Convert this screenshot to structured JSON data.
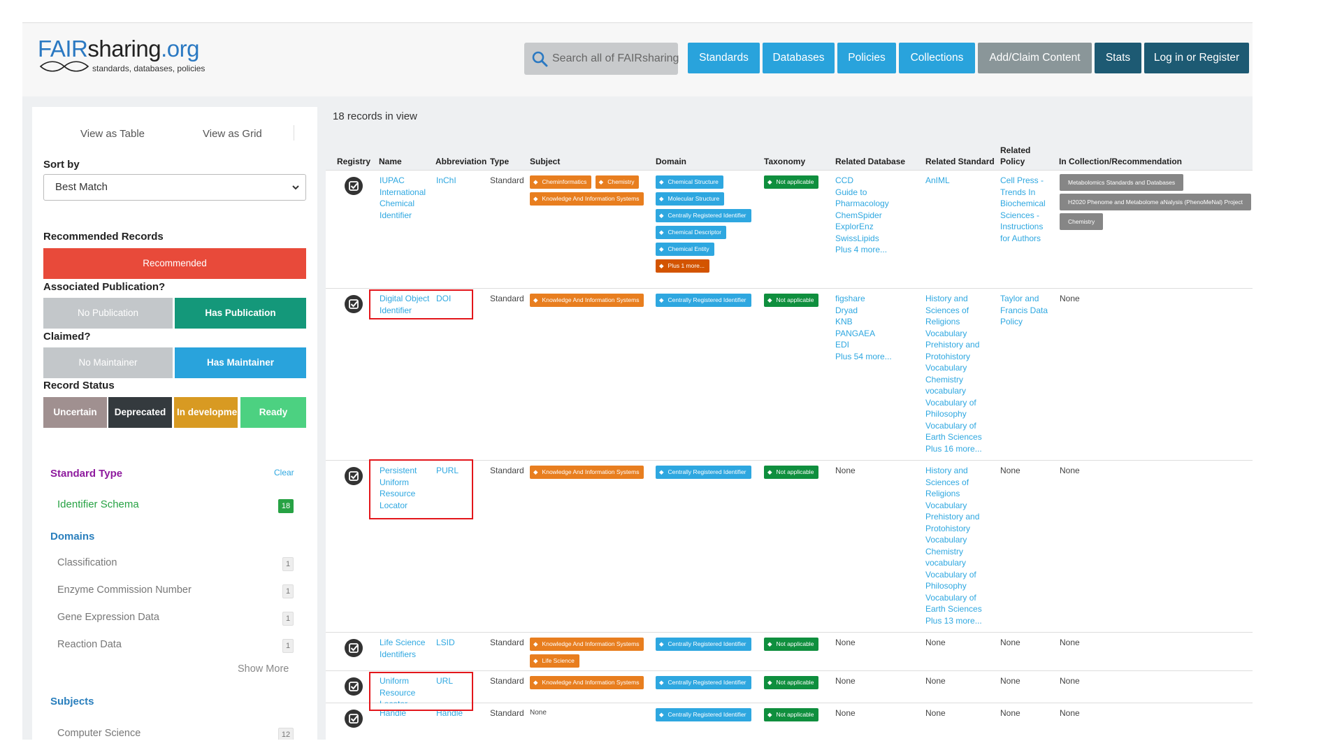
{
  "header": {
    "logo": {
      "fair": "FAIR",
      "sharing": "sharing",
      "org": ".org",
      "tagline": "standards, databases, policies"
    },
    "search_placeholder": "Search all of FAIRsharing",
    "nav": [
      "Standards",
      "Databases",
      "Policies",
      "Collections",
      "Add/Claim Content",
      "Stats",
      "Log in or Register"
    ]
  },
  "sidebar": {
    "view_table": "View as Table",
    "view_grid": "View as Grid",
    "sort_by_label": "Sort by",
    "sort_value": "Best Match",
    "recommended_label": "Recommended Records",
    "recommended_btn": "Recommended",
    "publication_label": "Associated Publication?",
    "no_publication": "No Publication",
    "has_publication": "Has Publication",
    "claimed_label": "Claimed?",
    "no_maintainer": "No Maintainer",
    "has_maintainer": "Has Maintainer",
    "status_label": "Record Status",
    "status": [
      "Uncertain",
      "Deprecated",
      "In development",
      "Ready"
    ],
    "standard_type": {
      "title": "Standard Type",
      "clear": "Clear",
      "item": "Identifier Schema",
      "count": "18"
    },
    "domains": {
      "title": "Domains",
      "items": [
        {
          "label": "Classification",
          "count": "1"
        },
        {
          "label": "Enzyme Commission Number",
          "count": "1"
        },
        {
          "label": "Gene Expression Data",
          "count": "1"
        },
        {
          "label": "Reaction Data",
          "count": "1"
        }
      ],
      "show_more": "Show More"
    },
    "subjects": {
      "title": "Subjects",
      "first_item": "Computer Science",
      "first_count": "12"
    }
  },
  "main": {
    "records_count": "18 records in view",
    "columns": [
      "Registry",
      "Name",
      "Abbreviation",
      "Type",
      "Subject",
      "Domain",
      "Taxonomy",
      "Related Database",
      "Related Standard",
      "Related Policy",
      "In Collection/Recommendation"
    ],
    "rows": [
      {
        "name": [
          "IUPAC",
          "International",
          "Chemical",
          "Identifier"
        ],
        "abbr": "InChI",
        "type": "Standard",
        "subjects": [
          "Cheminformatics",
          "Chemistry",
          "Knowledge And Information Systems"
        ],
        "domains": [
          "Chemical Structure",
          "Molecular Structure",
          "Centrally Registered Identifier",
          "Chemical Descriptor",
          "Chemical Entity",
          "Plus 1 more..."
        ],
        "taxonomy": "Not applicable",
        "related_db": [
          "CCD",
          "Guide to",
          "Pharmacology",
          "ChemSpider",
          "ExplorEnz",
          "SwissLipids",
          "Plus 4 more..."
        ],
        "related_std": [
          "AnIML"
        ],
        "related_policy": [
          "Cell Press -",
          "Trends In",
          "Biochemical",
          "Sciences -",
          "Instructions",
          "for Authors"
        ],
        "collections": [
          "Metabolomics Standards and Databases",
          "H2020 Phenome and Metabolome aNalysis (PhenoMeNal) Project",
          "Chemistry"
        ]
      },
      {
        "name": [
          "Digital Object",
          "Identifier"
        ],
        "abbr": "DOI",
        "type": "Standard",
        "subjects": [
          "Knowledge And Information Systems"
        ],
        "domains": [
          "Centrally Registered Identifier"
        ],
        "taxonomy": "Not applicable",
        "related_db": [
          "figshare",
          "Dryad",
          "KNB",
          "PANGAEA",
          "EDI",
          "Plus 54 more..."
        ],
        "related_std": [
          "History and",
          "Sciences of",
          "Religions",
          "Vocabulary",
          "Prehistory and",
          "Protohistory",
          "Vocabulary",
          "Chemistry",
          "vocabulary",
          "Vocabulary of",
          "Philosophy",
          "Vocabulary of",
          "Earth Sciences",
          "Plus 16 more..."
        ],
        "related_policy": [
          "Taylor and",
          "Francis Data",
          "Policy"
        ],
        "collections_text": "None"
      },
      {
        "name": [
          "Persistent",
          "Uniform",
          "Resource",
          "Locator"
        ],
        "abbr": "PURL",
        "type": "Standard",
        "subjects": [
          "Knowledge And Information Systems"
        ],
        "domains": [
          "Centrally Registered Identifier"
        ],
        "taxonomy": "Not applicable",
        "related_db_text": "None",
        "related_std": [
          "History and",
          "Sciences of",
          "Religions",
          "Vocabulary",
          "Prehistory and",
          "Protohistory",
          "Vocabulary",
          "Chemistry",
          "vocabulary",
          "Vocabulary of",
          "Philosophy",
          "Vocabulary of",
          "Earth Sciences",
          "Plus 13 more..."
        ],
        "related_policy_text": "None",
        "collections_text": "None"
      },
      {
        "name": [
          "Life Science",
          "Identifiers"
        ],
        "abbr": "LSID",
        "type": "Standard",
        "subjects": [
          "Knowledge And Information Systems",
          "Life Science"
        ],
        "domains": [
          "Centrally Registered Identifier"
        ],
        "taxonomy": "Not applicable",
        "related_db_text": "None",
        "related_std_text": "None",
        "related_policy_text": "None",
        "collections_text": "None"
      },
      {
        "name": [
          "Uniform",
          "Resource",
          "Locator"
        ],
        "abbr": "URL",
        "type": "Standard",
        "subjects": [
          "Knowledge And Information Systems"
        ],
        "domains": [
          "Centrally Registered Identifier"
        ],
        "taxonomy": "Not applicable",
        "related_db_text": "None",
        "related_std_text": "None",
        "related_policy_text": "None",
        "collections_text": "None"
      },
      {
        "name": [
          "Handle"
        ],
        "abbr": "Handle",
        "type": "Standard",
        "subjects_text": "None",
        "domains": [
          "Centrally Registered Identifier"
        ],
        "taxonomy": "Not applicable",
        "related_db_text": "None",
        "related_std_text": "None",
        "related_policy_text": "None",
        "collections_text": "None"
      }
    ]
  },
  "colors": {
    "blue": "#29a3dc",
    "gray": "#8a9699",
    "dark": "#1d5a73",
    "recommended": "#e84a3a",
    "highlight": "#e3161b"
  }
}
